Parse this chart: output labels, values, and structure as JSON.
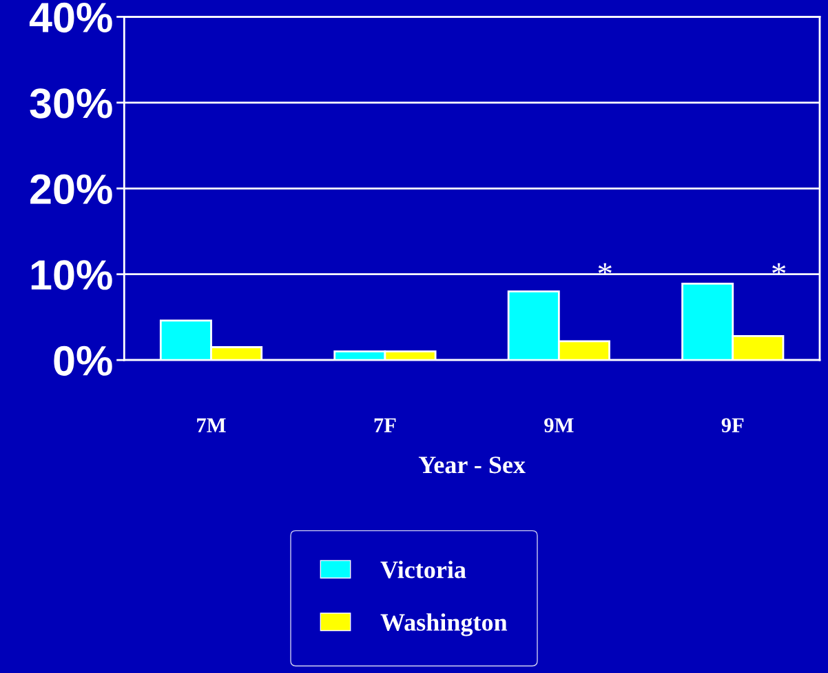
{
  "chart_data": {
    "type": "bar",
    "categories": [
      "7M",
      "7F",
      "9M",
      "9F"
    ],
    "xlabel": "Year - Sex",
    "series": [
      {
        "name": "Victoria",
        "color": "#00ffff",
        "values": [
          4.6,
          1.0,
          8.0,
          8.9
        ]
      },
      {
        "name": "Washington",
        "color": "#ffff00",
        "values": [
          1.5,
          1.0,
          2.2,
          2.8
        ]
      }
    ],
    "annotations": [
      {
        "text": "*",
        "x": "9M",
        "y": 8.0
      },
      {
        "text": "*",
        "x": "9F",
        "y": 8.0
      }
    ],
    "ylim": [
      0,
      40
    ],
    "yticks": [
      {
        "value": 0,
        "label": "0%"
      },
      {
        "value": 10,
        "label": "10%"
      },
      {
        "value": 20,
        "label": "20%"
      },
      {
        "value": 30,
        "label": "30%"
      },
      {
        "value": 40,
        "label": "40%"
      }
    ],
    "grid": "y",
    "legend": "bottom"
  }
}
